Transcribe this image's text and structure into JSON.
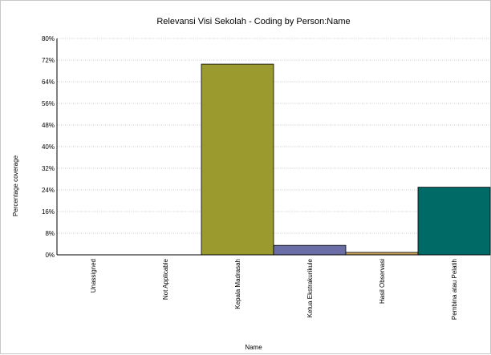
{
  "chart_data": {
    "type": "bar",
    "title": "Relevansi Visi Sekolah - Coding by Person:Name",
    "xlabel": "Name",
    "ylabel": "Percentage coverage",
    "ylim": [
      0,
      80
    ],
    "y_ticks": [
      0,
      8,
      16,
      24,
      32,
      40,
      48,
      56,
      64,
      72,
      80
    ],
    "y_tick_labels": [
      "0%",
      "8%",
      "16%",
      "24%",
      "32%",
      "40%",
      "48%",
      "56%",
      "64%",
      "72%",
      "80%"
    ],
    "categories": [
      "Unassigned",
      "Not Applicable",
      "Kepala Madrasah",
      "Ketua Ekstrakurikule",
      "Hasil Observasi",
      "Pembina atau Pelatih"
    ],
    "values": [
      0,
      0,
      70.5,
      3.5,
      0.9,
      25.0
    ],
    "colors": [
      "#9a9a2f",
      "#9a9a2f",
      "#9a9a2f",
      "#6b6ea6",
      "#c8a05a",
      "#006b66"
    ],
    "grid": true,
    "legend": "none"
  }
}
